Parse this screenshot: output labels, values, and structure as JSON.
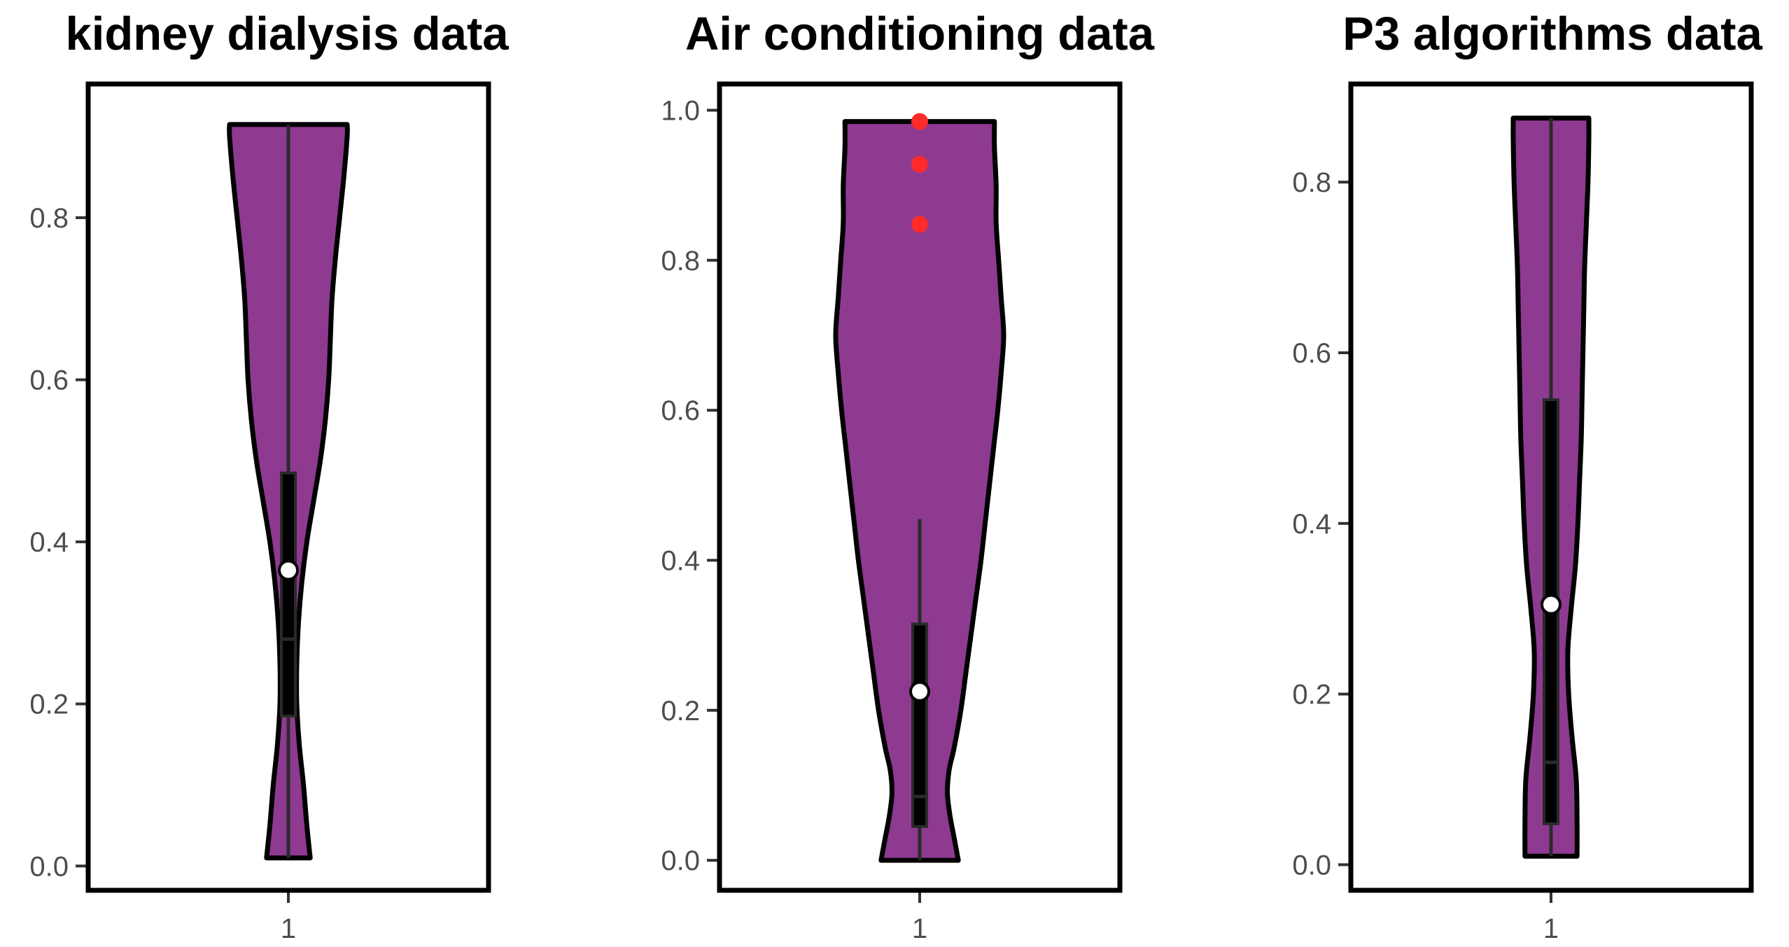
{
  "colors": {
    "violin_fill": "#8e3a91",
    "violin_stroke": "#000000",
    "box_color": "#2a2a2a",
    "outlier_color": "#ff2a2a",
    "mean_fill": "#ffffff",
    "tick_label_color": "#4d4d4d"
  },
  "chart_data": [
    {
      "type": "violin",
      "title": "kidney dialysis data",
      "xlabel": "",
      "ylabel": "",
      "ylim": [
        -0.03,
        0.965
      ],
      "categories": [
        "1"
      ],
      "yticks": [
        0.0,
        0.2,
        0.4,
        0.6,
        0.8
      ],
      "ytick_labels": [
        "0.0",
        "0.2",
        "0.4",
        "0.6",
        "0.8"
      ],
      "violin": {
        "min": 0.01,
        "max": 0.915,
        "profile": [
          [
            0.01,
            0.26
          ],
          [
            0.05,
            0.22
          ],
          [
            0.1,
            0.18
          ],
          [
            0.15,
            0.13
          ],
          [
            0.2,
            0.1
          ],
          [
            0.25,
            0.1
          ],
          [
            0.3,
            0.12
          ],
          [
            0.35,
            0.16
          ],
          [
            0.4,
            0.22
          ],
          [
            0.45,
            0.3
          ],
          [
            0.5,
            0.38
          ],
          [
            0.55,
            0.44
          ],
          [
            0.6,
            0.48
          ],
          [
            0.65,
            0.5
          ],
          [
            0.7,
            0.52
          ],
          [
            0.75,
            0.56
          ],
          [
            0.8,
            0.61
          ],
          [
            0.85,
            0.66
          ],
          [
            0.9,
            0.7
          ],
          [
            0.915,
            0.7
          ]
        ]
      },
      "box": {
        "whisker_low": 0.01,
        "q1": 0.185,
        "median": 0.28,
        "q3": 0.485,
        "whisker_high": 0.915
      },
      "mean": 0.365,
      "outliers": []
    },
    {
      "type": "violin",
      "title": "Air conditioning data",
      "xlabel": "",
      "ylabel": "",
      "ylim": [
        -0.04,
        1.035
      ],
      "categories": [
        "1"
      ],
      "yticks": [
        0.0,
        0.2,
        0.4,
        0.6,
        0.8,
        1.0
      ],
      "ytick_labels": [
        "0.0",
        "0.2",
        "0.4",
        "0.6",
        "0.8",
        "1.0"
      ],
      "violin": {
        "min": 0.0,
        "max": 0.985,
        "profile": [
          [
            0.0,
            0.46
          ],
          [
            0.03,
            0.41
          ],
          [
            0.06,
            0.36
          ],
          [
            0.09,
            0.33
          ],
          [
            0.12,
            0.35
          ],
          [
            0.15,
            0.41
          ],
          [
            0.2,
            0.49
          ],
          [
            0.25,
            0.55
          ],
          [
            0.3,
            0.61
          ],
          [
            0.35,
            0.67
          ],
          [
            0.4,
            0.73
          ],
          [
            0.45,
            0.78
          ],
          [
            0.5,
            0.83
          ],
          [
            0.55,
            0.88
          ],
          [
            0.6,
            0.93
          ],
          [
            0.65,
            0.97
          ],
          [
            0.7,
            1.0
          ],
          [
            0.75,
            0.97
          ],
          [
            0.8,
            0.94
          ],
          [
            0.85,
            0.91
          ],
          [
            0.9,
            0.91
          ],
          [
            0.95,
            0.89
          ],
          [
            0.985,
            0.89
          ]
        ]
      },
      "box": {
        "whisker_low": 0.0,
        "q1": 0.045,
        "median": 0.085,
        "q3": 0.315,
        "whisker_high": 0.455
      },
      "mean": 0.225,
      "outliers": [
        0.985,
        0.928,
        0.848
      ]
    },
    {
      "type": "violin",
      "title": "P3 algorithms data",
      "xlabel": "",
      "ylabel": "",
      "ylim": [
        -0.03,
        0.915
      ],
      "categories": [
        "1"
      ],
      "yticks": [
        0.0,
        0.2,
        0.4,
        0.6,
        0.8
      ],
      "ytick_labels": [
        "0.0",
        "0.2",
        "0.4",
        "0.6",
        "0.8"
      ],
      "violin": {
        "min": 0.01,
        "max": 0.875,
        "profile": [
          [
            0.01,
            0.31
          ],
          [
            0.05,
            0.31
          ],
          [
            0.1,
            0.3
          ],
          [
            0.15,
            0.25
          ],
          [
            0.2,
            0.21
          ],
          [
            0.25,
            0.2
          ],
          [
            0.3,
            0.24
          ],
          [
            0.35,
            0.29
          ],
          [
            0.4,
            0.32
          ],
          [
            0.45,
            0.34
          ],
          [
            0.5,
            0.36
          ],
          [
            0.55,
            0.37
          ],
          [
            0.6,
            0.38
          ],
          [
            0.65,
            0.39
          ],
          [
            0.7,
            0.4
          ],
          [
            0.75,
            0.42
          ],
          [
            0.8,
            0.44
          ],
          [
            0.85,
            0.45
          ],
          [
            0.875,
            0.45
          ]
        ]
      },
      "box": {
        "whisker_low": 0.01,
        "q1": 0.048,
        "median": 0.12,
        "q3": 0.545,
        "whisker_high": 0.875
      },
      "mean": 0.305,
      "outliers": []
    }
  ]
}
